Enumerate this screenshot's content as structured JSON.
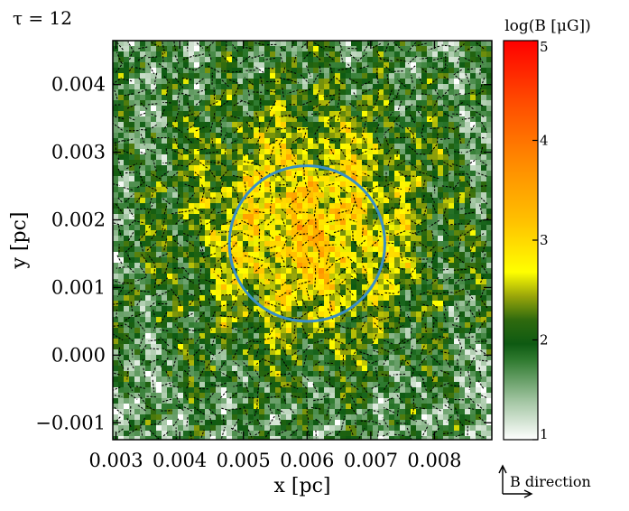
{
  "chart_data": {
    "type": "heatmap",
    "annotation": "τ = 12",
    "xlabel": "x [pc]",
    "ylabel": "y [pc]",
    "xlim": [
      0.00295,
      0.0089
    ],
    "ylim": [
      -0.00125,
      0.00465
    ],
    "x_ticks": [
      {
        "value": 0.003,
        "label": "0.003"
      },
      {
        "value": 0.004,
        "label": "0.004"
      },
      {
        "value": 0.005,
        "label": "0.005"
      },
      {
        "value": 0.006,
        "label": "0.006"
      },
      {
        "value": 0.007,
        "label": "0.007"
      },
      {
        "value": 0.008,
        "label": "0.008"
      }
    ],
    "y_ticks": [
      {
        "value": -0.001,
        "label": "−0.001"
      },
      {
        "value": 0.0,
        "label": "0.000"
      },
      {
        "value": 0.001,
        "label": "0.001"
      },
      {
        "value": 0.002,
        "label": "0.002"
      },
      {
        "value": 0.003,
        "label": "0.003"
      },
      {
        "value": 0.004,
        "label": "0.004"
      }
    ],
    "colorbar": {
      "label": "log(B [μG])",
      "range": [
        1,
        5
      ],
      "ticks": [
        {
          "value": 1,
          "label": "1"
        },
        {
          "value": 2,
          "label": "2"
        },
        {
          "value": 3,
          "label": "3"
        },
        {
          "value": 4,
          "label": "4"
        },
        {
          "value": 5,
          "label": "5"
        }
      ],
      "colors": [
        "#ffffff",
        "#0e5a12",
        "#ffff00",
        "#ff9900",
        "#ff0000"
      ]
    },
    "circle": {
      "center": [
        0.006,
        0.00165
      ],
      "radius": 0.00115,
      "color": "#3a8fc4"
    },
    "field_structure": {
      "center": [
        0.006,
        0.0019
      ],
      "peak_log_B": 3.1,
      "background_log_B": [
        1.0,
        2.2
      ]
    },
    "legend": {
      "label": "B direction"
    }
  }
}
